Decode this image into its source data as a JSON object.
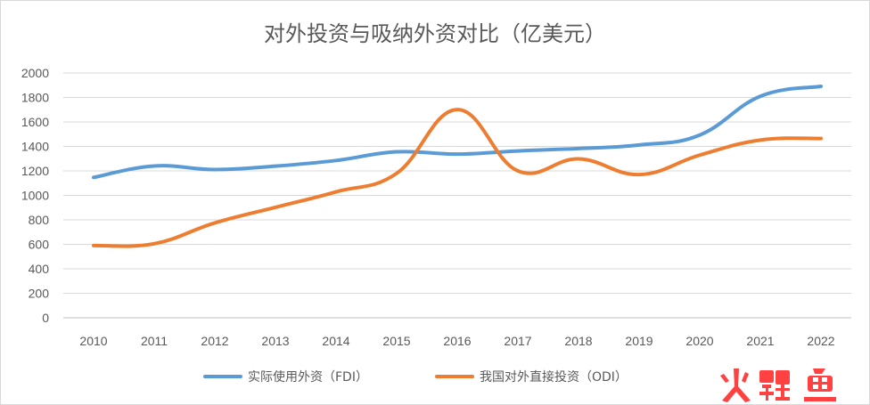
{
  "chart_data": {
    "type": "line",
    "title": "对外投资与吸纳外资对比（亿美元）",
    "xlabel": "",
    "ylabel": "",
    "categories": [
      "2010",
      "2011",
      "2012",
      "2013",
      "2014",
      "2015",
      "2016",
      "2017",
      "2018",
      "2019",
      "2020",
      "2021",
      "2022"
    ],
    "ylim": [
      0,
      2000
    ],
    "yticks": [
      0,
      200,
      400,
      600,
      800,
      1000,
      1200,
      1400,
      1600,
      1800,
      2000
    ],
    "grid": true,
    "legend_position": "bottom",
    "series": [
      {
        "name": "实际使用外资（FDI）",
        "color": "#5b9bd5",
        "values": [
          1147,
          1240,
          1211,
          1239,
          1285,
          1356,
          1337,
          1363,
          1383,
          1412,
          1493,
          1810,
          1891
        ]
      },
      {
        "name": "我国对外直接投资（ODI）",
        "color": "#ed7d31",
        "values": [
          590,
          605,
          775,
          902,
          1029,
          1180,
          1701,
          1200,
          1298,
          1170,
          1329,
          1452,
          1465
        ]
      }
    ]
  },
  "watermark": {
    "text": "火鲤鱼"
  }
}
